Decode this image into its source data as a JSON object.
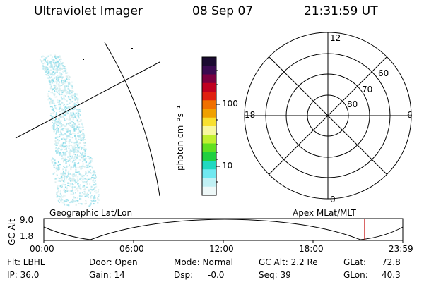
{
  "header": {
    "title": "Ultraviolet Imager",
    "date": "08 Sep 07",
    "time": "21:31:59 UT"
  },
  "colorbar": {
    "unit_label": "photon cm⁻²s⁻¹",
    "ticks": [
      "100",
      "10"
    ],
    "colors": [
      "#1a0a30",
      "#3a0a50",
      "#7a0040",
      "#c00020",
      "#e02010",
      "#f07000",
      "#f0a000",
      "#f8e030",
      "#f8f8a0",
      "#c0f030",
      "#60e020",
      "#20d040",
      "#20d8c0",
      "#70e8f0",
      "#c0f0f4",
      "#eef8f8"
    ]
  },
  "polar": {
    "mlt_labels": {
      "top": "12",
      "left": "18",
      "right": "6",
      "bottom": "0"
    },
    "lat_labels": [
      "60",
      "70",
      "80"
    ]
  },
  "timeline": {
    "left_label": "Geographic Lat/Lon",
    "right_label": "Apex MLat/MLT",
    "axis_title": "GC Alt",
    "y_ticks": [
      "9.0",
      "1.8"
    ],
    "x_ticks": [
      "00:00",
      "06:00",
      "12:00",
      "18:00",
      "23:59"
    ]
  },
  "footer": {
    "flt": "Flt: LBHL",
    "ip": "IP: 36.0",
    "door": "Door: Open",
    "gain": "Gain: 14",
    "mode": "Mode: Normal",
    "dsp_label": "Dsp:",
    "dsp_value": "-0.0",
    "gcalt": "GC Alt: 2.2 Re",
    "seq": "Seq: 39",
    "glat_label": "GLat:",
    "glat_value": "72.8",
    "glon_label": "GLon:",
    "glon_value": "40.3"
  }
}
